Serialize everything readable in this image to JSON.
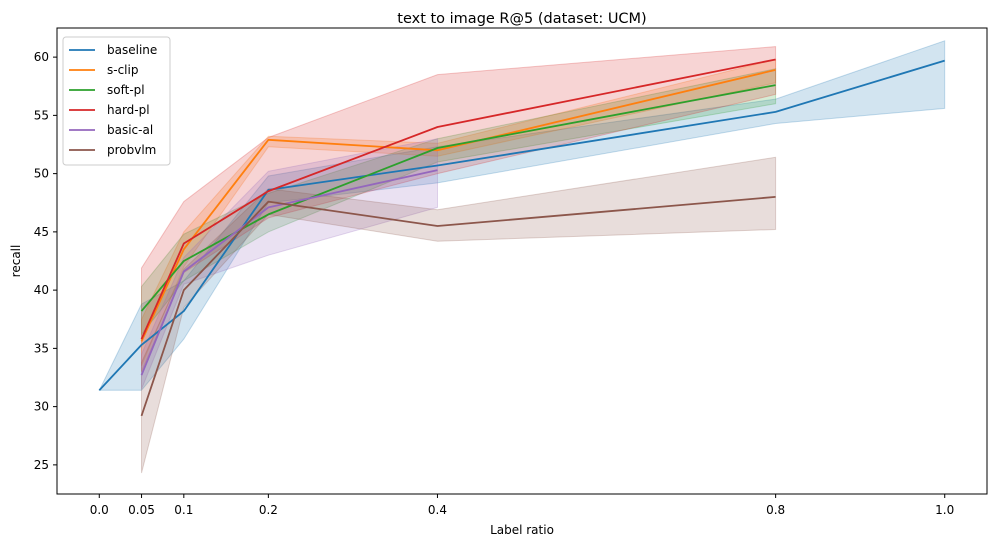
{
  "chart_data": {
    "type": "line",
    "title": "text to image R@5 (dataset: UCM)",
    "xlabel": "Label ratio",
    "ylabel": "recall",
    "x_ticks": [
      "0.0",
      "0.05",
      "0.1",
      "0.2",
      "0.4",
      "0.8",
      "1.0"
    ],
    "x_tick_values": [
      0.0,
      0.05,
      0.1,
      0.2,
      0.4,
      0.8,
      1.0
    ],
    "y_ticks": [
      "25",
      "30",
      "35",
      "40",
      "45",
      "50",
      "55",
      "60"
    ],
    "y_tick_values": [
      25,
      30,
      35,
      40,
      45,
      50,
      55,
      60
    ],
    "xlim": [
      -0.05,
      1.05
    ],
    "ylim": [
      22.5,
      62.5
    ],
    "grid": false,
    "legend_position": "top-left",
    "series": [
      {
        "name": "baseline",
        "color": "#1f77b4",
        "x": [
          0.0,
          0.05,
          0.1,
          0.2,
          0.4,
          0.8,
          1.0
        ],
        "y": [
          31.4,
          35.3,
          38.2,
          48.6,
          50.7,
          55.3,
          59.7
        ],
        "lower": [
          31.4,
          31.4,
          35.8,
          47.5,
          49.2,
          54.3,
          55.6
        ],
        "upper": [
          31.4,
          38.8,
          40.8,
          49.8,
          52.3,
          56.4,
          61.4
        ]
      },
      {
        "name": "s-clip",
        "color": "#ff7f0e",
        "x": [
          0.05,
          0.1,
          0.2,
          0.4,
          0.8
        ],
        "y": [
          35.6,
          43.5,
          52.9,
          52.0,
          58.9
        ],
        "lower": [
          33.5,
          42.0,
          52.3,
          51.5,
          57.8
        ],
        "upper": [
          37.5,
          45.0,
          53.2,
          52.6,
          59.8
        ]
      },
      {
        "name": "soft-pl",
        "color": "#2ca02c",
        "x": [
          0.05,
          0.1,
          0.2,
          0.4,
          0.8
        ],
        "y": [
          38.2,
          42.5,
          46.5,
          52.2,
          57.6
        ],
        "lower": [
          36.2,
          40.8,
          45.0,
          51.0,
          56.0
        ],
        "upper": [
          40.3,
          44.8,
          48.3,
          53.0,
          59.0
        ]
      },
      {
        "name": "hard-pl",
        "color": "#d62728",
        "x": [
          0.05,
          0.1,
          0.2,
          0.4,
          0.8
        ],
        "y": [
          35.8,
          44.0,
          48.5,
          54.0,
          59.8
        ],
        "lower": [
          33.0,
          41.5,
          46.2,
          50.0,
          56.8
        ],
        "upper": [
          41.9,
          47.6,
          53.1,
          58.5,
          60.9
        ]
      },
      {
        "name": "basic-al",
        "color": "#9467bd",
        "x": [
          0.05,
          0.1,
          0.2,
          0.4
        ],
        "y": [
          32.7,
          41.6,
          47.1,
          50.3
        ],
        "lower": [
          31.5,
          40.5,
          43.0,
          47.1
        ],
        "upper": [
          34.5,
          42.8,
          50.2,
          53.0
        ]
      },
      {
        "name": "probvlm",
        "color": "#8c564b",
        "x": [
          0.05,
          0.1,
          0.2,
          0.4,
          0.8
        ],
        "y": [
          29.2,
          40.0,
          47.6,
          45.5,
          48.0
        ],
        "lower": [
          24.3,
          38.5,
          46.5,
          44.2,
          45.2
        ],
        "upper": [
          33.8,
          41.8,
          48.7,
          46.9,
          51.4
        ]
      }
    ]
  }
}
